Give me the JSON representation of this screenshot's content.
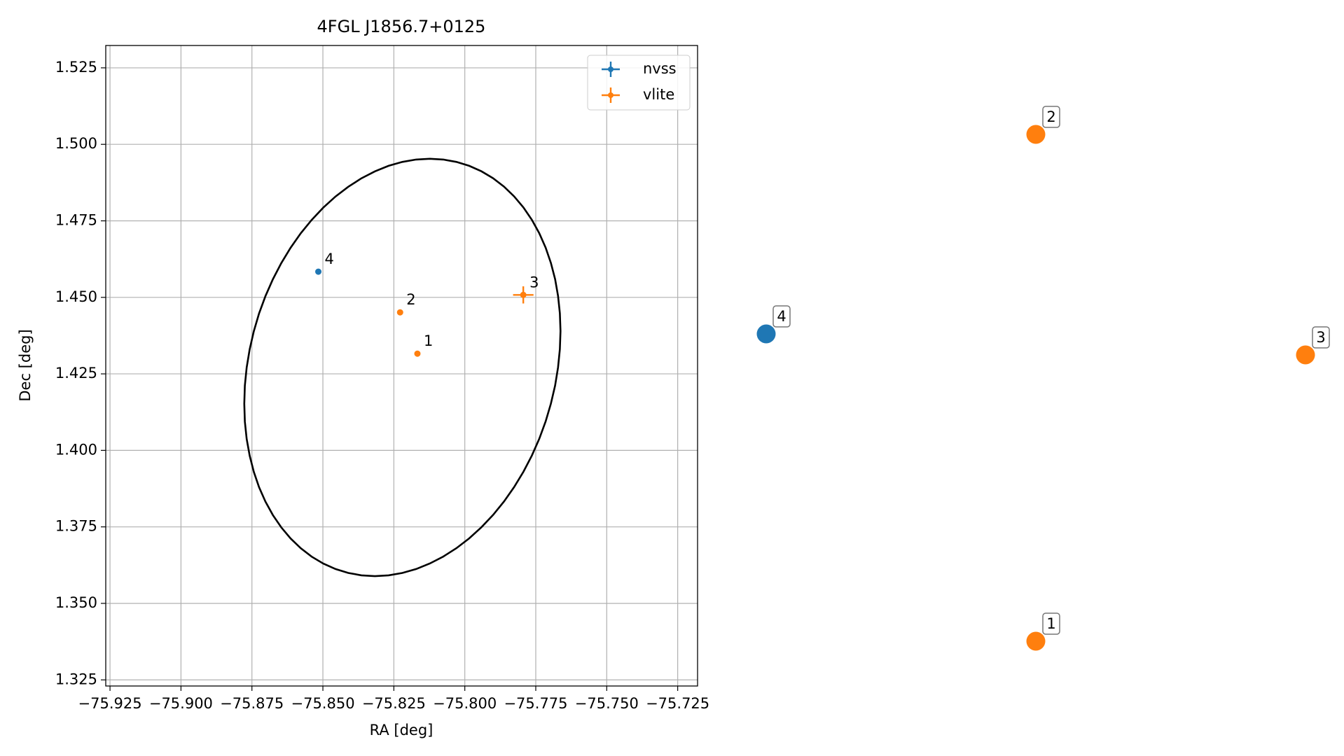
{
  "chart_data": {
    "type": "errorbar",
    "title": "4FGL J1856.7+0125",
    "x_label": "RA [deg]",
    "y_label": "Dec [deg]",
    "xlim": [
      -75.9265,
      -75.718
    ],
    "ylim": [
      1.323,
      1.5323
    ],
    "xticks": [
      {
        "value": -75.925,
        "label": "−75.925"
      },
      {
        "value": -75.9,
        "label": "−75.900"
      },
      {
        "value": -75.875,
        "label": "−75.875"
      },
      {
        "value": -75.85,
        "label": "−75.850"
      },
      {
        "value": -75.825,
        "label": "−75.825"
      },
      {
        "value": -75.8,
        "label": "−75.800"
      },
      {
        "value": -75.775,
        "label": "−75.775"
      },
      {
        "value": -75.75,
        "label": "−75.750"
      },
      {
        "value": -75.725,
        "label": "−75.725"
      }
    ],
    "yticks": [
      1.325,
      {
        "value": 1.35,
        "label": "1.350"
      },
      1.375,
      {
        "value": 1.4,
        "label": "1.400"
      },
      1.425,
      {
        "value": 1.45,
        "label": "1.450"
      },
      1.475,
      {
        "value": 1.5,
        "label": "1.500"
      },
      1.525
    ],
    "grid": true,
    "legend": "upper right",
    "series": [
      {
        "name": "nvss",
        "color": "#1f77b4",
        "labels": [
          "4"
        ],
        "x": [
          -75.8516
        ],
        "y": [
          1.4584
        ],
        "xerr": [
          0.0007
        ],
        "yerr": [
          0.0006
        ]
      },
      {
        "name": "vlite",
        "color": "#ff7f0e",
        "labels": [
          "1",
          "2",
          "3"
        ],
        "x": [
          -75.8167,
          -75.8228,
          -75.7794
        ],
        "y": [
          1.4316,
          1.4451,
          1.4508
        ],
        "xerr": [
          0.0005,
          0.0005,
          0.0036
        ],
        "yerr": [
          0.0005,
          0.0008,
          0.0028
        ]
      }
    ],
    "ellipse": {
      "center": [
        -75.822,
        1.4271
      ],
      "half_widths": [
        0.0557,
        0.0682
      ],
      "correlation": 0.174
    }
  }
}
